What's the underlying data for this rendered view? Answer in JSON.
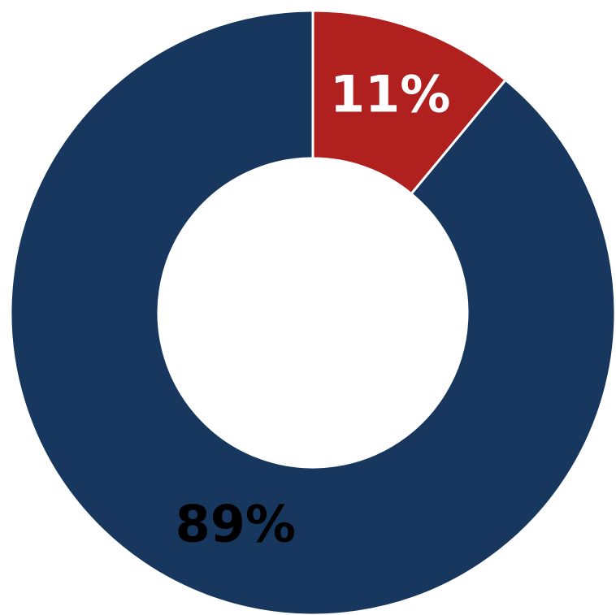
{
  "chart_data": {
    "type": "donut",
    "values": [
      11,
      89
    ],
    "value_labels": [
      "11%",
      "89%"
    ],
    "colors": [
      "#b0201e",
      "#17375e"
    ],
    "label_colors": [
      "#ffffff",
      "#000000"
    ]
  }
}
